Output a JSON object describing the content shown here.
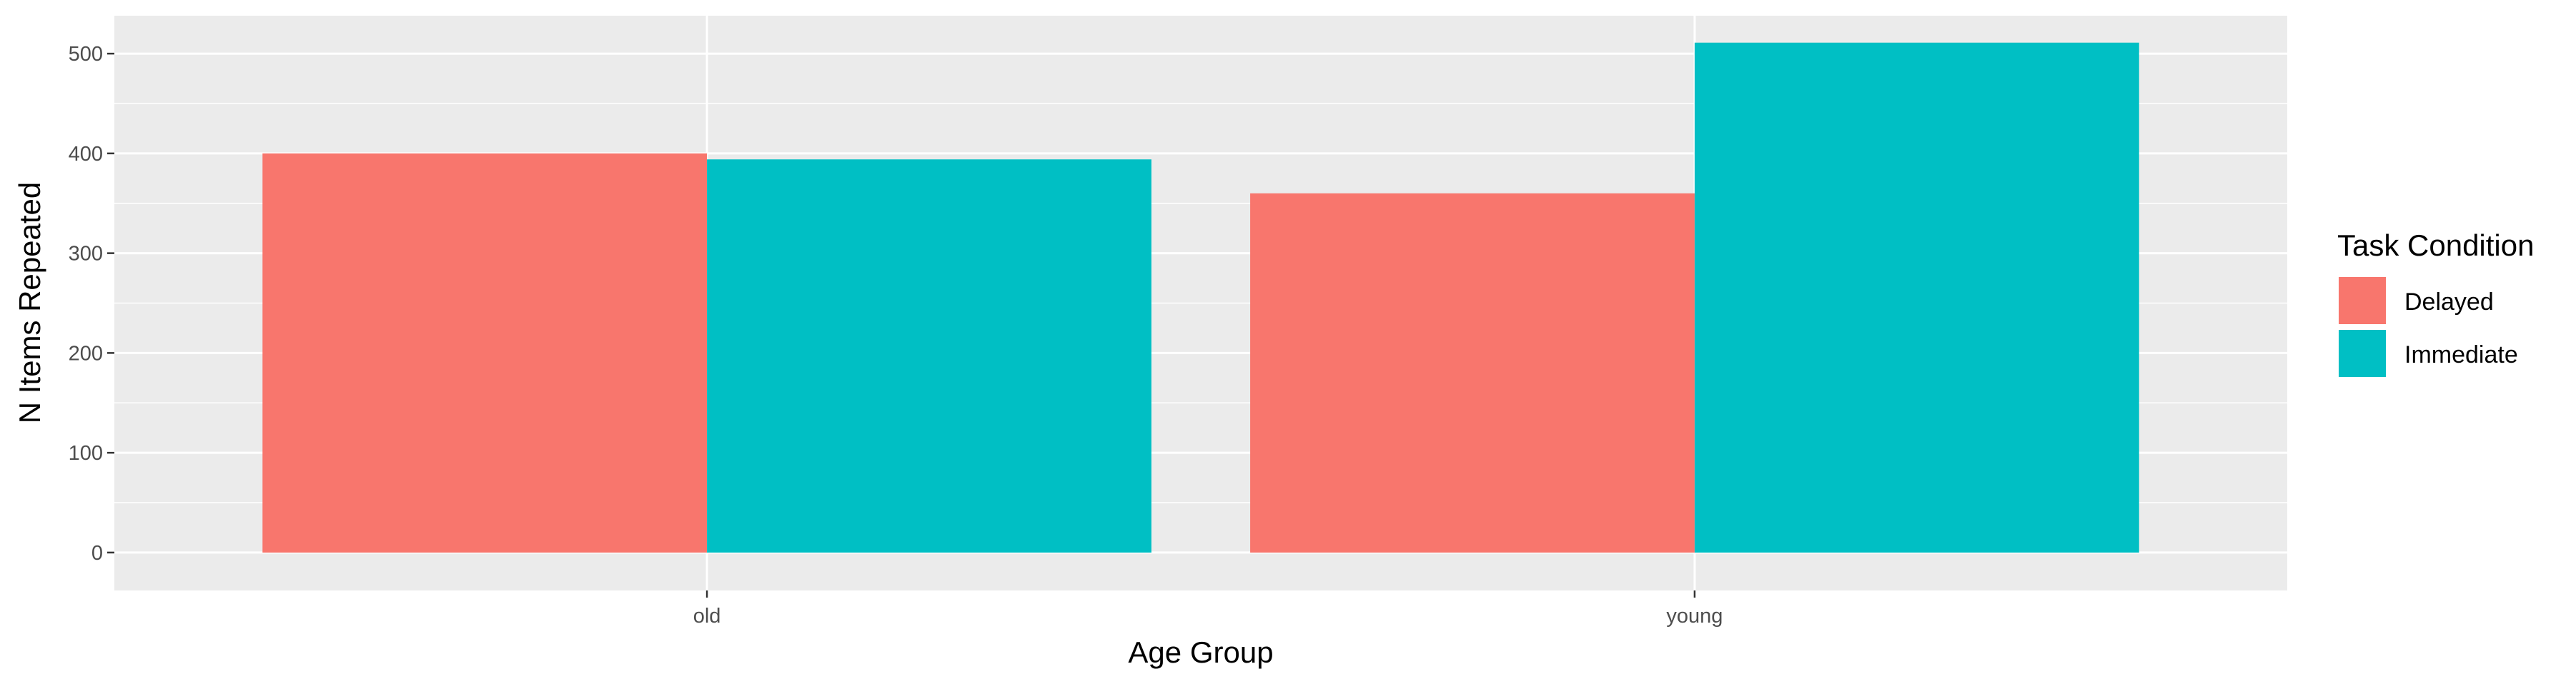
{
  "chart_data": {
    "type": "bar",
    "xlabel": "Age Group",
    "ylabel": "N Items Repeated",
    "categories": [
      "old",
      "young"
    ],
    "series": [
      {
        "name": "Delayed",
        "values": [
          400,
          360
        ],
        "color": "#F8766D"
      },
      {
        "name": "Immediate",
        "values": [
          394,
          511
        ],
        "color": "#00BFC4"
      }
    ],
    "ylim": [
      -38,
      538
    ],
    "yticks": [
      0,
      100,
      200,
      300,
      400,
      500
    ],
    "ytick_labels": [
      "0",
      "100",
      "200",
      "300",
      "400",
      "500"
    ],
    "grid": true,
    "legend": {
      "title": "Task Condition",
      "position": "right"
    },
    "panel_background": "#EBEBEB",
    "grid_color": "#FFFFFF"
  }
}
